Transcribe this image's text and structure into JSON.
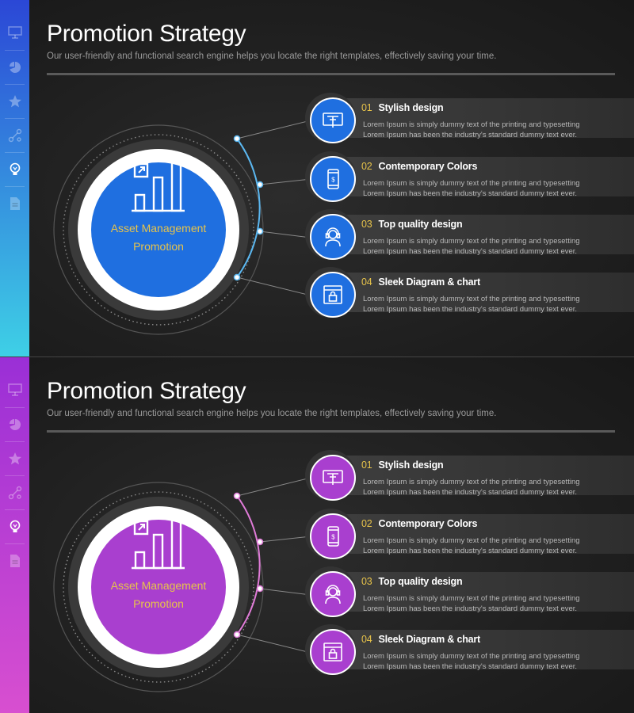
{
  "slides": [
    {
      "theme": {
        "sidebar_top": "#2b47d6",
        "sidebar_bottom": "#3ed0e6",
        "accent": "#1f6fe0",
        "arc": "#5bb7f0"
      },
      "title": "Promotion Strategy",
      "subtitle": "Our user-friendly and functional search engine helps you locate the right templates, effectively saving your time.",
      "center": {
        "line1": "Asset Management",
        "line2": "Promotion",
        "icon": "bar-chart-growth-icon"
      },
      "sidebar_icons": [
        "presentation-icon",
        "pie-chart-icon",
        "star-icon",
        "network-icon",
        "lightbulb-icon",
        "document-icon"
      ],
      "items": [
        {
          "num": "01",
          "title": "Stylish design",
          "desc1": "Lorem Ipsum is simply dummy text of the printing and typesetting",
          "desc2": "Lorem Ipsum has been the industry's standard dummy text ever.",
          "icon": "ticket-icon"
        },
        {
          "num": "02",
          "title": "Contemporary Colors",
          "desc1": "Lorem Ipsum is simply dummy text of the printing and typesetting",
          "desc2": "Lorem Ipsum has been the industry's standard dummy text ever.",
          "icon": "mobile-payment-icon"
        },
        {
          "num": "03",
          "title": "Top quality design",
          "desc1": "Lorem Ipsum is simply dummy text of the printing and typesetting",
          "desc2": "Lorem Ipsum has been the industry's standard dummy text ever.",
          "icon": "headset-support-icon"
        },
        {
          "num": "04",
          "title": "Sleek Diagram & chart",
          "desc1": "Lorem Ipsum is simply dummy text of the printing and typesetting",
          "desc2": "Lorem Ipsum has been the industry's standard dummy text ever.",
          "icon": "secure-browser-icon"
        }
      ]
    },
    {
      "theme": {
        "sidebar_top": "#9a2fd6",
        "sidebar_bottom": "#d84fd0",
        "accent": "#a93fcf",
        "arc": "#e07bd8"
      },
      "title": "Promotion Strategy",
      "subtitle": "Our user-friendly and functional search engine helps you locate the right templates, effectively saving your time.",
      "center": {
        "line1": "Asset Management",
        "line2": "Promotion",
        "icon": "bar-chart-growth-icon"
      },
      "sidebar_icons": [
        "presentation-icon",
        "pie-chart-icon",
        "star-icon",
        "network-icon",
        "lightbulb-icon",
        "document-icon"
      ],
      "items": [
        {
          "num": "01",
          "title": "Stylish design",
          "desc1": "Lorem Ipsum is simply dummy text of the printing and typesetting",
          "desc2": "Lorem Ipsum has been the industry's standard dummy text ever.",
          "icon": "ticket-icon"
        },
        {
          "num": "02",
          "title": "Contemporary Colors",
          "desc1": "Lorem Ipsum is simply dummy text of the printing and typesetting",
          "desc2": "Lorem Ipsum has been the industry's standard dummy text ever.",
          "icon": "mobile-payment-icon"
        },
        {
          "num": "03",
          "title": "Top quality design",
          "desc1": "Lorem Ipsum is simply dummy text of the printing and typesetting",
          "desc2": "Lorem Ipsum has been the industry's standard dummy text ever.",
          "icon": "headset-support-icon"
        },
        {
          "num": "04",
          "title": "Sleek Diagram & chart",
          "desc1": "Lorem Ipsum is simply dummy text of the printing and typesetting",
          "desc2": "Lorem Ipsum has been the industry's standard dummy text ever.",
          "icon": "secure-browser-icon"
        }
      ]
    }
  ]
}
